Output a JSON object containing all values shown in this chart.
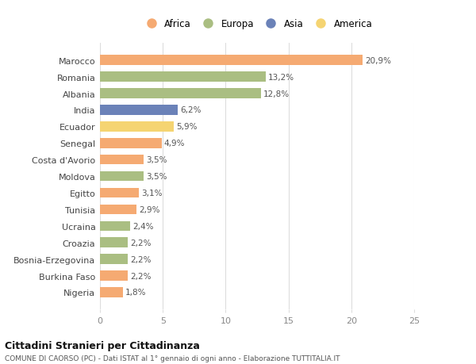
{
  "categories": [
    "Marocco",
    "Romania",
    "Albania",
    "India",
    "Ecuador",
    "Senegal",
    "Costa d'Avorio",
    "Moldova",
    "Egitto",
    "Tunisia",
    "Ucraina",
    "Croazia",
    "Bosnia-Erzegovina",
    "Burkina Faso",
    "Nigeria"
  ],
  "values": [
    20.9,
    13.2,
    12.8,
    6.2,
    5.9,
    4.9,
    3.5,
    3.5,
    3.1,
    2.9,
    2.4,
    2.2,
    2.2,
    2.2,
    1.8
  ],
  "continents": [
    "Africa",
    "Europa",
    "Europa",
    "Asia",
    "America",
    "Africa",
    "Africa",
    "Europa",
    "Africa",
    "Africa",
    "Europa",
    "Europa",
    "Europa",
    "Africa",
    "Africa"
  ],
  "colors": {
    "Africa": "#F5AA72",
    "Europa": "#AABE82",
    "Asia": "#6B82B8",
    "America": "#F5D472"
  },
  "legend_order": [
    "Africa",
    "Europa",
    "Asia",
    "America"
  ],
  "title": "Cittadini Stranieri per Cittadinanza",
  "subtitle": "COMUNE DI CAORSO (PC) - Dati ISTAT al 1° gennaio di ogni anno - Elaborazione TUTTITALIA.IT",
  "xlim": [
    0,
    25
  ],
  "xticks": [
    0,
    5,
    10,
    15,
    20,
    25
  ],
  "background_color": "#ffffff",
  "grid_color": "#dddddd",
  "bar_height": 0.6,
  "label_color": "#555555",
  "tick_color": "#888888"
}
